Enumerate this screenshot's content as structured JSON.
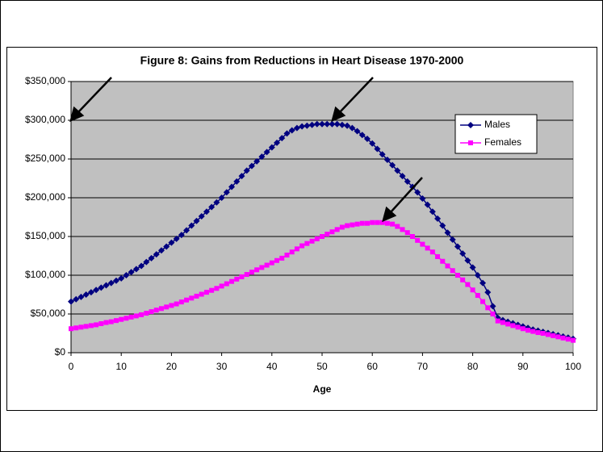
{
  "chart_data": {
    "type": "line",
    "title": "Figure 8: Gains from Reductions in Heart Disease 1970-2000",
    "x_label": "Age",
    "x": [
      0,
      1,
      2,
      3,
      4,
      5,
      6,
      7,
      8,
      9,
      10,
      11,
      12,
      13,
      14,
      15,
      16,
      17,
      18,
      19,
      20,
      21,
      22,
      23,
      24,
      25,
      26,
      27,
      28,
      29,
      30,
      31,
      32,
      33,
      34,
      35,
      36,
      37,
      38,
      39,
      40,
      41,
      42,
      43,
      44,
      45,
      46,
      47,
      48,
      49,
      50,
      51,
      52,
      53,
      54,
      55,
      56,
      57,
      58,
      59,
      60,
      61,
      62,
      63,
      64,
      65,
      66,
      67,
      68,
      69,
      70,
      71,
      72,
      73,
      74,
      75,
      76,
      77,
      78,
      79,
      80,
      81,
      82,
      83,
      84,
      85,
      86,
      87,
      88,
      89,
      90,
      91,
      92,
      93,
      94,
      95,
      96,
      97,
      98,
      99,
      100
    ],
    "series": [
      {
        "name": "Males",
        "color": "#000080",
        "marker": "diamond",
        "values": [
          66000,
          69000,
          72000,
          75000,
          78000,
          81000,
          84000,
          87000,
          90000,
          93000,
          96000,
          100000,
          104000,
          108000,
          112000,
          117000,
          122000,
          127000,
          132000,
          137000,
          142000,
          147000,
          152000,
          158000,
          164000,
          170000,
          176000,
          182000,
          188000,
          194000,
          200000,
          207000,
          214000,
          221000,
          228000,
          235000,
          241000,
          247000,
          253000,
          259000,
          265000,
          271000,
          277000,
          283000,
          287000,
          290000,
          292000,
          293000,
          294000,
          295000,
          295000,
          295000,
          295000,
          295000,
          294000,
          293000,
          290000,
          286000,
          281000,
          276000,
          270000,
          263000,
          256000,
          249000,
          242000,
          235000,
          228000,
          221000,
          214000,
          207000,
          199000,
          191000,
          182000,
          173000,
          164000,
          155000,
          146000,
          137000,
          128000,
          119000,
          110000,
          100000,
          90000,
          78000,
          60000,
          45000,
          42000,
          40000,
          38000,
          36000,
          34000,
          32000,
          30000,
          28500,
          27000,
          25500,
          24000,
          22500,
          21000,
          19500,
          18000
        ]
      },
      {
        "name": "Females",
        "color": "#ff00ff",
        "marker": "square",
        "values": [
          31000,
          32000,
          33000,
          34000,
          35000,
          36000,
          37500,
          39000,
          40000,
          41500,
          43000,
          44500,
          46000,
          47500,
          49000,
          51000,
          53000,
          55000,
          57000,
          59000,
          61000,
          63000,
          65500,
          68000,
          70500,
          73000,
          75500,
          78000,
          80500,
          83000,
          86000,
          89000,
          92000,
          95000,
          98000,
          101000,
          104000,
          107000,
          110000,
          113000,
          116000,
          119000,
          122000,
          126000,
          130000,
          134000,
          138000,
          141000,
          144000,
          147000,
          150000,
          153000,
          156000,
          159000,
          162000,
          164000,
          165000,
          166000,
          167000,
          167000,
          168000,
          168000,
          168000,
          167000,
          166000,
          163000,
          159000,
          155000,
          150000,
          145000,
          140000,
          135000,
          130000,
          124000,
          118000,
          112000,
          106000,
          100000,
          94000,
          88000,
          81000,
          74000,
          66000,
          58000,
          50000,
          41000,
          39000,
          37000,
          35000,
          33000,
          31000,
          29000,
          27500,
          26000,
          25000,
          23500,
          22000,
          20500,
          19000,
          17500,
          16000
        ]
      }
    ],
    "xlim": [
      0,
      100
    ],
    "xticks": [
      0,
      10,
      20,
      30,
      40,
      50,
      60,
      70,
      80,
      90,
      100
    ],
    "ylim": [
      0,
      350000
    ],
    "yticks": [
      {
        "value": 0,
        "label": "$0"
      },
      {
        "value": 50000,
        "label": "$50,000"
      },
      {
        "value": 100000,
        "label": "$100,000"
      },
      {
        "value": 150000,
        "label": "$150,000"
      },
      {
        "value": 200000,
        "label": "$200,000"
      },
      {
        "value": 250000,
        "label": "$250,000"
      },
      {
        "value": 300000,
        "label": "$300,000"
      },
      {
        "value": 350000,
        "label": "$350,000"
      }
    ],
    "grid": true,
    "legend": "upper right",
    "plot_background": "#c0c0c0"
  }
}
